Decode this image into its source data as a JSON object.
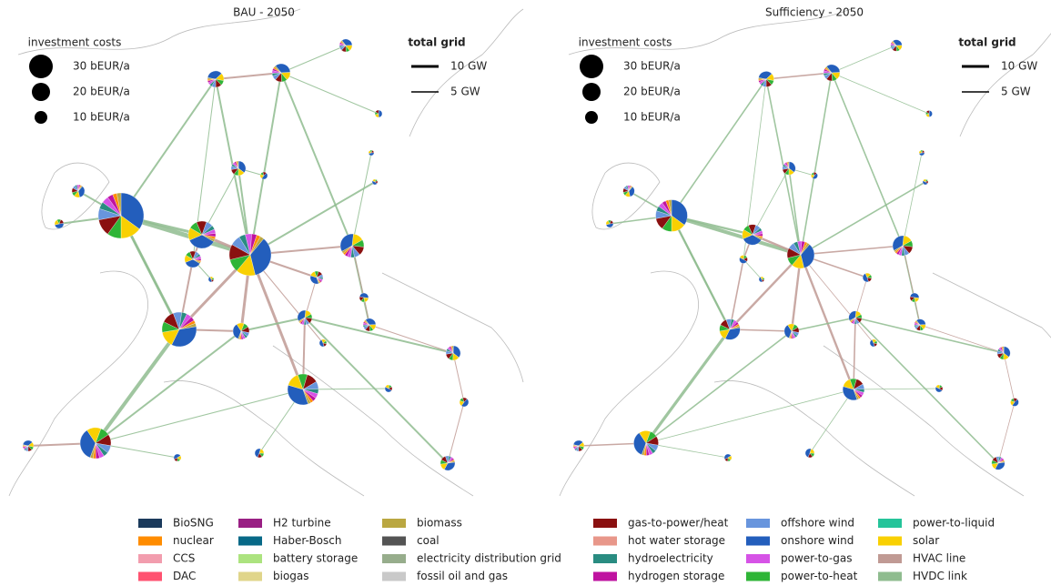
{
  "panels": [
    {
      "title": "BAU - 2050"
    },
    {
      "title": "Sufficiency - 2050"
    }
  ],
  "size_legend": {
    "title": "investment costs",
    "items": [
      "30 bEUR/a",
      "20 bEUR/a",
      "10 bEUR/a"
    ]
  },
  "grid_legend": {
    "title": "total grid",
    "items": [
      "10 GW",
      "5 GW"
    ]
  },
  "carrier_legend": [
    {
      "name": "BioSNG",
      "color": "#1b3a5c"
    },
    {
      "name": "nuclear",
      "color": "#ff8c00"
    },
    {
      "name": "CCS",
      "color": "#f29dae"
    },
    {
      "name": "DAC",
      "color": "#ff5270"
    },
    {
      "name": "H2 turbine",
      "color": "#991f83"
    },
    {
      "name": "Haber-Bosch",
      "color": "#076987"
    },
    {
      "name": "battery storage",
      "color": "#ace37f"
    },
    {
      "name": "biogas",
      "color": "#e0d58a"
    },
    {
      "name": "biomass",
      "color": "#baa741"
    },
    {
      "name": "coal",
      "color": "#545454"
    },
    {
      "name": "electricity distribution grid",
      "color": "#97ad8c"
    },
    {
      "name": "fossil oil and gas",
      "color": "#c9c9c9"
    },
    {
      "name": "gas-to-power/heat",
      "color": "#8a1010"
    },
    {
      "name": "hot water storage",
      "color": "#e8978a"
    },
    {
      "name": "hydroelectricity",
      "color": "#298c81"
    },
    {
      "name": "hydrogen storage",
      "color": "#bf13a0"
    },
    {
      "name": "offshore wind",
      "color": "#6895dd"
    },
    {
      "name": "onshore wind",
      "color": "#235ebc"
    },
    {
      "name": "power-to-gas",
      "color": "#d653e6"
    },
    {
      "name": "power-to-heat",
      "color": "#2fb537"
    },
    {
      "name": "power-to-liquid",
      "color": "#25c49a"
    },
    {
      "name": "solar",
      "color": "#f9d002"
    },
    {
      "name": "HVAC line",
      "color": "#c09a94"
    },
    {
      "name": "HVDC link",
      "color": "#8fbc8f"
    }
  ]
}
